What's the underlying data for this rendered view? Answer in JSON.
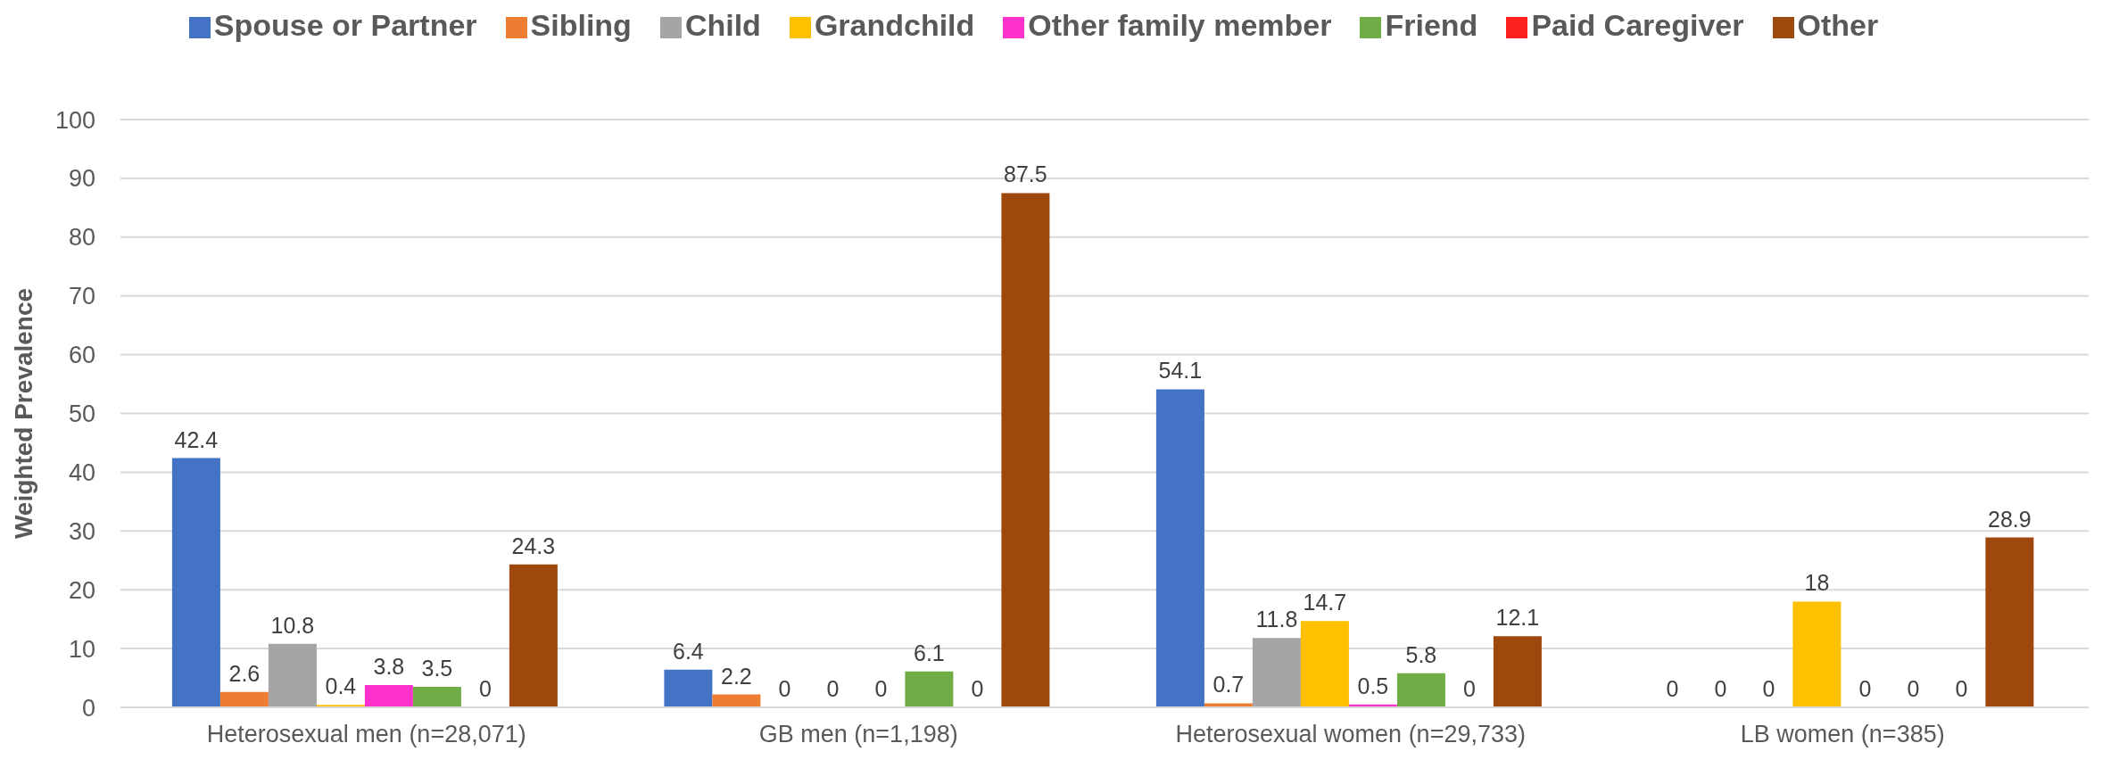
{
  "chart_data": {
    "type": "bar",
    "ylabel": "Weighted Prevalence",
    "categories": [
      "Heterosexual men (n=28,071)",
      "GB men (n=1,198)",
      "Heterosexual women (n=29,733)",
      "LB women (n=385)"
    ],
    "series": [
      {
        "name": "Spouse or Partner",
        "color": "#4472c4",
        "values": [
          42.4,
          6.4,
          54.1,
          0
        ]
      },
      {
        "name": "Sibling",
        "color": "#ed7d31",
        "values": [
          2.6,
          2.2,
          0.7,
          0
        ]
      },
      {
        "name": "Child",
        "color": "#a5a5a5",
        "values": [
          10.8,
          0,
          11.8,
          0
        ]
      },
      {
        "name": "Grandchild",
        "color": "#ffc000",
        "values": [
          0.4,
          0,
          14.7,
          18
        ]
      },
      {
        "name": "Other family member",
        "color": "#ff33cc",
        "values": [
          3.8,
          0,
          0.5,
          0
        ]
      },
      {
        "name": "Friend",
        "color": "#70ad47",
        "values": [
          3.5,
          6.1,
          5.8,
          0
        ]
      },
      {
        "name": "Paid Caregiver",
        "color": "#ff2020",
        "values": [
          0,
          0,
          0,
          0
        ]
      },
      {
        "name": "Other",
        "color": "#9e480e",
        "values": [
          24.3,
          87.5,
          12.1,
          28.9
        ]
      }
    ],
    "ylim": [
      0,
      100
    ],
    "yticks": [
      0,
      10,
      20,
      30,
      40,
      50,
      60,
      70,
      80,
      90,
      100
    ],
    "grid": "y",
    "legend": "top",
    "data_labels": true
  }
}
